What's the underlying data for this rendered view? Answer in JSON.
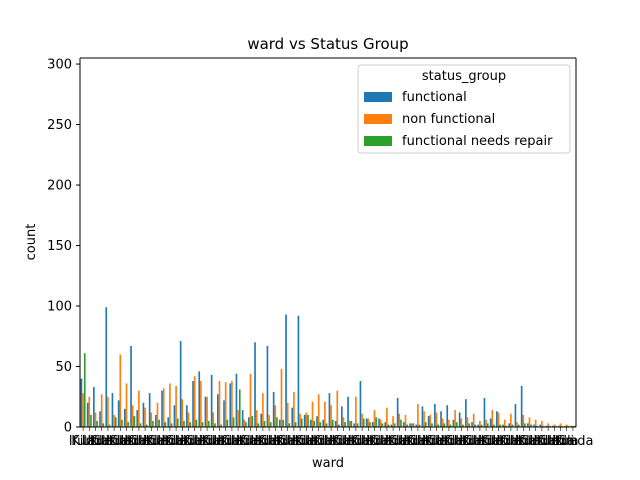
{
  "chart_data": {
    "type": "bar",
    "title": "ward vs Status Group",
    "xlabel": "ward",
    "ylabel": "count",
    "ylim": [
      0,
      305
    ],
    "yticks": [
      0,
      50,
      100,
      150,
      200,
      250,
      300
    ],
    "xtick_labels_visible": [
      "Kila",
      "Ifunda",
      "Utiri"
    ],
    "grid": false,
    "legend": {
      "title": "status_group",
      "position": "top-right",
      "entries": [
        "functional",
        "non functional",
        "functional needs repair"
      ]
    },
    "colors": {
      "functional": "#1f77b4",
      "non functional": "#ff7f0e",
      "functional needs repair": "#2ca02c"
    },
    "series": [
      {
        "name": "functional",
        "values": [
          40,
          20,
          33,
          13,
          99,
          28,
          22,
          15,
          67,
          14,
          20,
          28,
          10,
          30,
          8,
          18,
          71,
          18,
          38,
          46,
          25,
          43,
          27,
          22,
          36,
          44,
          14,
          8,
          70,
          11,
          67,
          29,
          6,
          93,
          16,
          92,
          10,
          6,
          9,
          6,
          28,
          5,
          17,
          25,
          3,
          38,
          7,
          4,
          7,
          4,
          2,
          24,
          4,
          3,
          2,
          17,
          9,
          19,
          13,
          18,
          6,
          12,
          23,
          4,
          2,
          24,
          7,
          13,
          2,
          3,
          19,
          34,
          3,
          2,
          2,
          1,
          1,
          1,
          1,
          1
        ]
      },
      {
        "name": "non functional",
        "values": [
          28,
          25,
          12,
          27,
          25,
          10,
          60,
          36,
          18,
          30,
          16,
          12,
          20,
          32,
          36,
          34,
          23,
          12,
          42,
          38,
          25,
          12,
          38,
          37,
          38,
          14,
          6,
          44,
          14,
          28,
          10,
          18,
          48,
          20,
          29,
          11,
          12,
          21,
          27,
          21,
          18,
          30,
          8,
          5,
          25,
          11,
          7,
          14,
          6,
          16,
          9,
          11,
          10,
          3,
          19,
          13,
          10,
          12,
          7,
          6,
          14,
          7,
          8,
          11,
          5,
          6,
          14,
          12,
          6,
          11,
          4,
          10,
          8,
          6,
          5,
          3,
          2,
          3,
          2,
          1
        ]
      },
      {
        "name": "functional needs repair",
        "values": [
          61,
          10,
          5,
          3,
          2,
          8,
          6,
          4,
          9,
          3,
          2,
          5,
          6,
          4,
          3,
          7,
          5,
          4,
          6,
          4,
          5,
          3,
          2,
          6,
          8,
          31,
          4,
          9,
          3,
          5,
          4,
          8,
          6,
          3,
          4,
          7,
          10,
          5,
          4,
          3,
          6,
          2,
          4,
          5,
          3,
          7,
          4,
          8,
          3,
          2,
          3,
          6,
          2,
          3,
          2,
          4,
          3,
          2,
          3,
          2,
          4,
          2,
          3,
          2,
          2,
          3,
          2,
          2,
          1,
          2,
          2,
          3,
          2,
          1,
          1,
          1,
          1,
          1,
          1,
          1
        ]
      }
    ]
  }
}
